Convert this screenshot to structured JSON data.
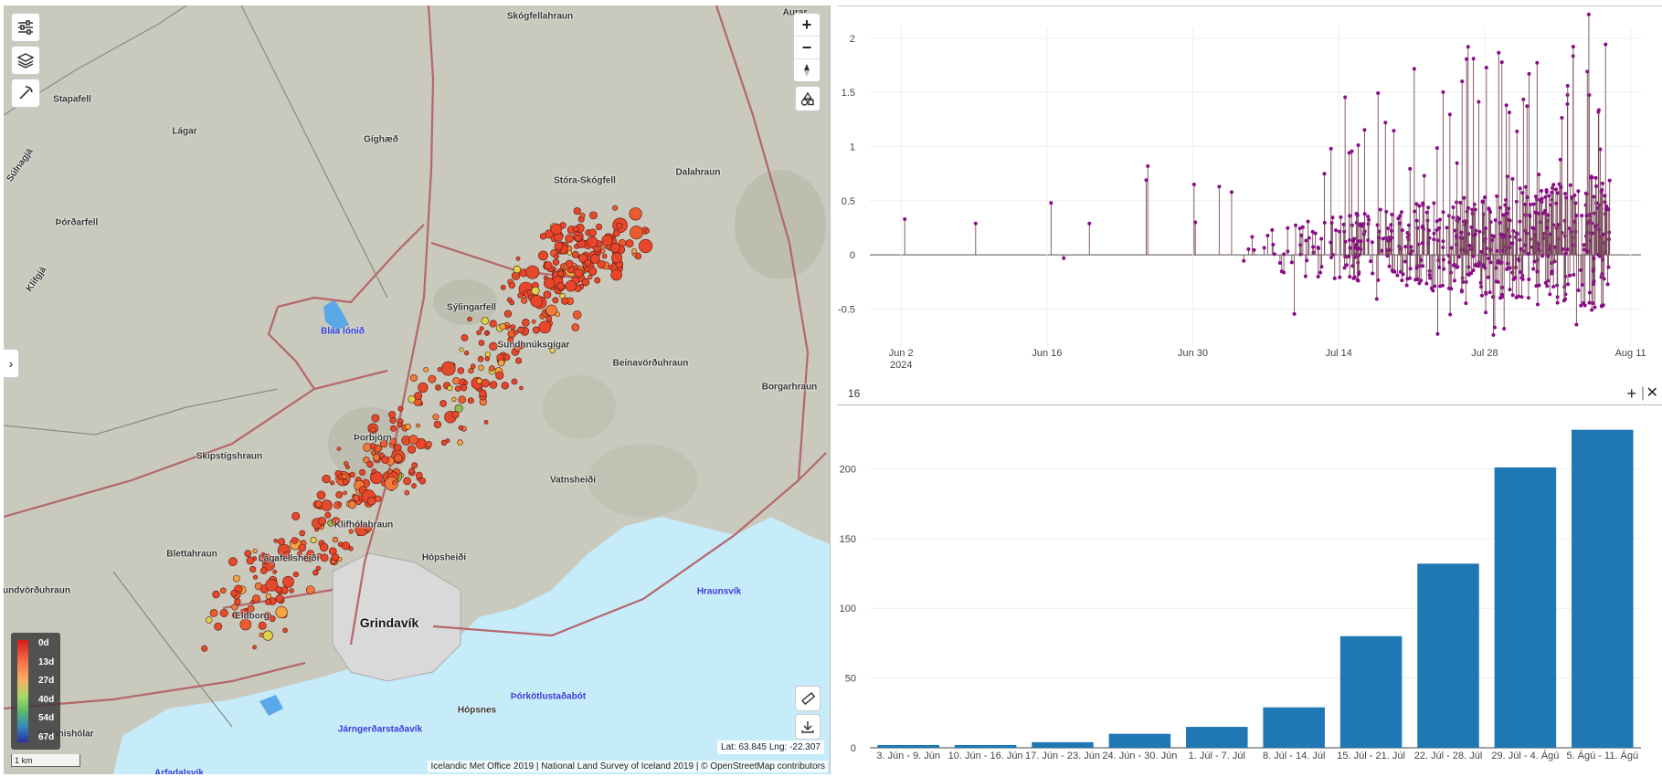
{
  "map": {
    "places": [
      {
        "name": "Skógfellahraun",
        "x": 587,
        "y": 12
      },
      {
        "name": "Aurar",
        "x": 866,
        "y": 8
      },
      {
        "name": "Stapafell",
        "x": 75,
        "y": 103
      },
      {
        "name": "Lágar",
        "x": 198,
        "y": 138
      },
      {
        "name": "Gíghæð",
        "x": 413,
        "y": 147
      },
      {
        "name": "Súlnagjá",
        "x": 18,
        "y": 175,
        "rot": true
      },
      {
        "name": "Stóra-Skógfell",
        "x": 636,
        "y": 192
      },
      {
        "name": "Dalahraun",
        "x": 760,
        "y": 183
      },
      {
        "name": "Þórðarfell",
        "x": 80,
        "y": 238
      },
      {
        "name": "Klifgjá",
        "x": 36,
        "y": 300,
        "rot": true
      },
      {
        "name": "Sýlingarfell",
        "x": 512,
        "y": 331
      },
      {
        "name": "Sundhnúksgígar",
        "x": 580,
        "y": 372
      },
      {
        "name": "Beinavörðuhraun",
        "x": 708,
        "y": 392
      },
      {
        "name": "Borgarhraun",
        "x": 860,
        "y": 418
      },
      {
        "name": "Þorbjörn",
        "x": 404,
        "y": 474
      },
      {
        "name": "Skipstígshraun",
        "x": 247,
        "y": 494
      },
      {
        "name": "Vatnsheiði",
        "x": 623,
        "y": 520
      },
      {
        "name": "Klifhólahraun",
        "x": 394,
        "y": 569
      },
      {
        "name": "Blettahraun",
        "x": 206,
        "y": 601
      },
      {
        "name": "Lágafellsheiði",
        "x": 312,
        "y": 606
      },
      {
        "name": "Hópsheiði",
        "x": 482,
        "y": 605
      },
      {
        "name": "undvörðuhraun",
        "x": 36,
        "y": 641
      },
      {
        "name": "Eldborg",
        "x": 272,
        "y": 669
      },
      {
        "name": "Þórkötlustaðabót",
        "x": 596,
        "y": 757
      },
      {
        "name": "Hópsnes",
        "x": 518,
        "y": 772
      },
      {
        "name": "Járngerðarstaðavík",
        "x": 412,
        "y": 793
      },
      {
        "name": "Arfadalsvík",
        "x": 192,
        "y": 841
      },
      {
        "name": "Þrennishólar",
        "x": 68,
        "y": 798
      }
    ],
    "water_places": [
      {
        "name": "Bláa lónið",
        "x": 371,
        "y": 357
      },
      {
        "name": "Hraunsvík",
        "x": 783,
        "y": 642
      },
      {
        "name": "Járngerðarstaðavík",
        "x": 412,
        "y": 793
      },
      {
        "name": "Þórkötlustaðabót",
        "x": 596,
        "y": 757
      },
      {
        "name": "Arfadalsvík",
        "x": 192,
        "y": 841
      }
    ],
    "town": {
      "name": "Grindavík",
      "x": 422,
      "y": 676
    },
    "legend_labels": [
      "0d",
      "13d",
      "27d",
      "40d",
      "54d",
      "67d"
    ],
    "scale_label": "1 km",
    "coordinates": "Lat: 63.845 Lng: -22.307",
    "attribution": "Icelandic Met Office 2019 | National Land Survey of Iceland 2019 | © OpenStreetMap contributors",
    "zoom_in": "+",
    "zoom_out": "−",
    "sidebar_toggle": "›",
    "colors": {
      "land": "#c9c9bd",
      "water": "#c6ecfa",
      "road": "#b5676a",
      "quake_recent": "#e8452a"
    }
  },
  "top_panel_title": "",
  "panel": {
    "title": "16",
    "add": "+",
    "close": "✕"
  },
  "chart_data": [
    {
      "type": "line",
      "name": "stem-plot",
      "x_ticks": [
        "Jun 2\n2024",
        "Jun 16",
        "Jun 30",
        "Jul 14",
        "Jul 28",
        "Aug 11"
      ],
      "y_ticks": [
        -0.5,
        0,
        0.5,
        1,
        1.5,
        2
      ],
      "ylim": [
        -0.85,
        2.1
      ],
      "xlim": [
        "2024-05-30",
        "2024-08-12"
      ],
      "color": "#8b0a8b",
      "stem_color": "#7a4a5a",
      "seed": 16
    },
    {
      "type": "bar",
      "categories": [
        "3. Jún - 9. Jún",
        "10. Jún - 16. Jún",
        "17. Jún - 23. Jún",
        "24. Jún - 30. Jún",
        "1. Júl - 7. Júl",
        "8. Júl - 14. Júl",
        "15. Júl - 21. Júl",
        "22. Júl - 28. Júl",
        "29. Júl - 4. Ágú",
        "5. Ágú - 11. Ágú"
      ],
      "values": [
        2,
        2,
        4,
        10,
        15,
        29,
        80,
        132,
        201,
        228
      ],
      "y_ticks": [
        0,
        50,
        100,
        150,
        200
      ],
      "ylim": [
        0,
        235
      ],
      "color": "#1f77b4"
    }
  ]
}
